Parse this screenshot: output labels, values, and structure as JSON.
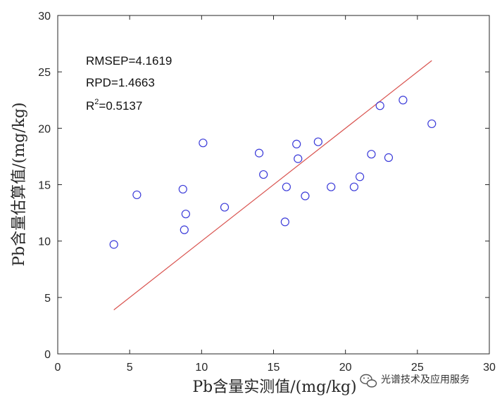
{
  "chart_data": {
    "type": "scatter",
    "title": "",
    "xlabel": "Pb含量实测值/(mg/kg)",
    "ylabel": "Pb含量估算值/(mg/kg)",
    "xlim": [
      0,
      30
    ],
    "ylim": [
      0,
      30
    ],
    "xticks": [
      0,
      5,
      10,
      15,
      20,
      25,
      30
    ],
    "yticks": [
      0,
      5,
      10,
      15,
      20,
      25,
      30
    ],
    "grid": false,
    "points": [
      {
        "x": 3.9,
        "y": 9.7
      },
      {
        "x": 5.5,
        "y": 14.1
      },
      {
        "x": 8.7,
        "y": 14.6
      },
      {
        "x": 8.8,
        "y": 11.0
      },
      {
        "x": 8.9,
        "y": 12.4
      },
      {
        "x": 10.1,
        "y": 18.7
      },
      {
        "x": 11.6,
        "y": 13.0
      },
      {
        "x": 14.0,
        "y": 17.8
      },
      {
        "x": 14.3,
        "y": 15.9
      },
      {
        "x": 15.8,
        "y": 11.7
      },
      {
        "x": 15.9,
        "y": 14.8
      },
      {
        "x": 16.6,
        "y": 18.6
      },
      {
        "x": 16.7,
        "y": 17.3
      },
      {
        "x": 17.2,
        "y": 14.0
      },
      {
        "x": 18.1,
        "y": 18.8
      },
      {
        "x": 19.0,
        "y": 14.8
      },
      {
        "x": 20.6,
        "y": 14.8
      },
      {
        "x": 21.0,
        "y": 15.7
      },
      {
        "x": 21.8,
        "y": 17.7
      },
      {
        "x": 22.4,
        "y": 22.0
      },
      {
        "x": 23.0,
        "y": 17.4
      },
      {
        "x": 24.0,
        "y": 22.5
      },
      {
        "x": 26.0,
        "y": 20.4
      }
    ],
    "fit_line": {
      "x": [
        3.9,
        26.0
      ],
      "y": [
        3.9,
        26.0
      ]
    },
    "annotations": {
      "rmsep": "RMSEP=4.1619",
      "rpd": "RPD=1.4663",
      "r2_base": "R",
      "r2_sup": "2",
      "r2_value": "=0.5137"
    },
    "colors": {
      "marker": "#3b3bd9",
      "fit_line": "#d9534f",
      "axis": "#262626"
    }
  },
  "watermark": {
    "icon": "wechat-icon",
    "text": "光谱技术及应用服务"
  }
}
